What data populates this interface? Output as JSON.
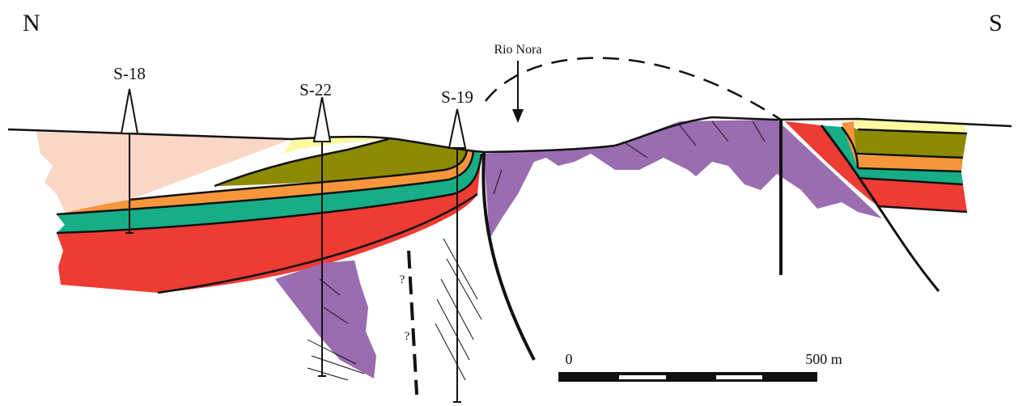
{
  "orientation": {
    "north": "N",
    "south": "S"
  },
  "boreholes": [
    {
      "label": "S-18"
    },
    {
      "label": "S-22"
    },
    {
      "label": "S-19"
    }
  ],
  "river": "Rio Nora",
  "question_marks": [
    "?",
    "?"
  ],
  "scale_bar": {
    "start": "0",
    "end": "500 m"
  }
}
